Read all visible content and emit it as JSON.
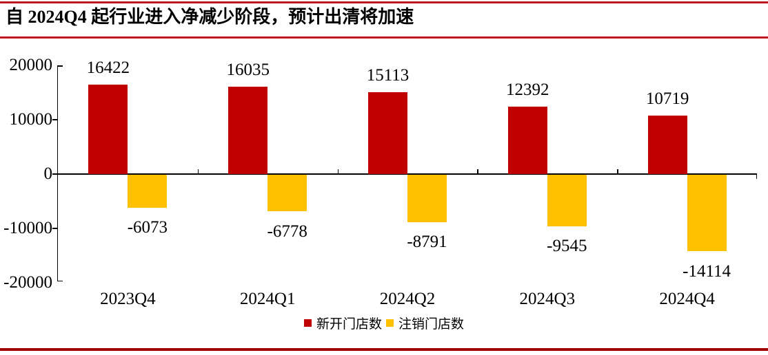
{
  "page": {
    "title": "自 2024Q4 起行业进入净减少阶段，预计出清将加速"
  },
  "colors": {
    "top_rule": "#C0161F",
    "bottom_rule": "#A00000",
    "axis": "#000000",
    "bar_open": "#C00000",
    "bar_closed": "#FFC000"
  },
  "chart_data": {
    "type": "bar",
    "title": "自 2024Q4 起行业进入净减少阶段，预计出清将加速",
    "categories": [
      "2023Q4",
      "2024Q1",
      "2024Q2",
      "2024Q3",
      "2024Q4"
    ],
    "series": [
      {
        "name": "新开门店数",
        "color": "#C00000",
        "values": [
          16422,
          16035,
          15113,
          12392,
          10719
        ]
      },
      {
        "name": "注销门店数",
        "color": "#FFC000",
        "values": [
          -6073,
          -6778,
          -8791,
          -9545,
          -14114
        ]
      }
    ],
    "xlabel": "",
    "ylabel": "",
    "yticks": [
      20000,
      10000,
      0,
      -10000,
      -20000
    ],
    "ylim": [
      -20000,
      20000
    ],
    "grid": false,
    "data_labels": true,
    "legend_position": "bottom"
  }
}
